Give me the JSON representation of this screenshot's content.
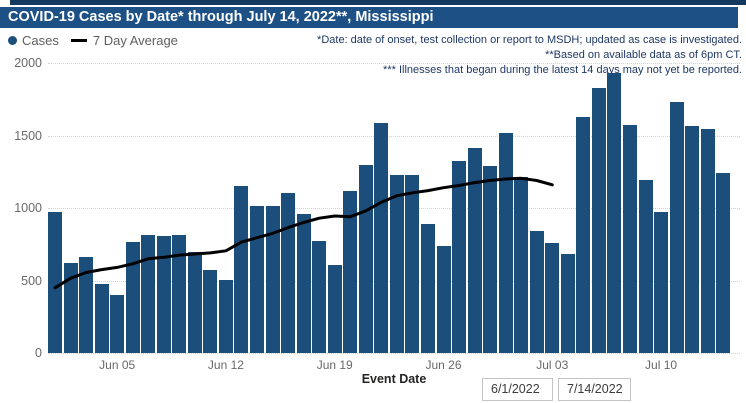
{
  "title_bar": {
    "text": "COVID-19 Cases by Date* through July 14, 2022**, Mississippi"
  },
  "legend": {
    "cases_label": "Cases",
    "avg_label": "7 Day Average"
  },
  "notes": [
    "*Date: date of onset, test collection or report to MSDH; updated as case is investigated.",
    "**Based on available data as of 6pm CT.",
    "*** Illnesses that began during the latest 14 days may not yet be reported."
  ],
  "date_filters": {
    "start": "6/1/2022",
    "end": "7/14/2022"
  },
  "colors": {
    "top_strip": "#14395E",
    "title_bg": "#1D5186",
    "title_text": "#FFFFFF",
    "bar": "#1C4E7C",
    "avg_line": "#000000",
    "note_text": "#1F3864",
    "axis_text": "#686868"
  },
  "chart_data": {
    "type": "bar+line",
    "title": "COVID-19 Cases by Date* through July 14, 2022**, Mississippi",
    "xlabel": "Event Date",
    "ylabel": "",
    "ylim": [
      0,
      2000
    ],
    "y_ticks": [
      0,
      500,
      1000,
      1500,
      2000
    ],
    "grid": "dotted-horizontal",
    "legend_position": "top-left",
    "x": [
      "Jun 1",
      "Jun 2",
      "Jun 3",
      "Jun 4",
      "Jun 5",
      "Jun 6",
      "Jun 7",
      "Jun 8",
      "Jun 9",
      "Jun 10",
      "Jun 11",
      "Jun 12",
      "Jun 13",
      "Jun 14",
      "Jun 15",
      "Jun 16",
      "Jun 17",
      "Jun 18",
      "Jun 19",
      "Jun 20",
      "Jun 21",
      "Jun 22",
      "Jun 23",
      "Jun 24",
      "Jun 25",
      "Jun 26",
      "Jun 27",
      "Jun 28",
      "Jun 29",
      "Jun 30",
      "Jul 1",
      "Jul 2",
      "Jul 3",
      "Jul 4",
      "Jul 5",
      "Jul 6",
      "Jul 7",
      "Jul 8",
      "Jul 9",
      "Jul 10",
      "Jul 11",
      "Jul 12",
      "Jul 13",
      "Jul 14"
    ],
    "x_ticks": [
      {
        "index": 4,
        "label": "Jun 05"
      },
      {
        "index": 11,
        "label": "Jun 12"
      },
      {
        "index": 18,
        "label": "Jun 19"
      },
      {
        "index": 25,
        "label": "Jun 26"
      },
      {
        "index": 32,
        "label": "Jul 03"
      },
      {
        "index": 39,
        "label": "Jul 10"
      }
    ],
    "series": [
      {
        "name": "Cases",
        "type": "bar",
        "values": [
          970,
          620,
          665,
          475,
          400,
          765,
          815,
          810,
          815,
          700,
          570,
          505,
          1155,
          1015,
          1015,
          1105,
          960,
          770,
          610,
          1115,
          1295,
          1590,
          1230,
          1230,
          890,
          735,
          1325,
          1415,
          1290,
          1515,
          1215,
          840,
          760,
          685,
          1630,
          1825,
          1930,
          1575,
          1195,
          975,
          1730,
          1565,
          1545,
          1240
        ]
      },
      {
        "name": "7 Day Average",
        "type": "line",
        "values": [
          450,
          515,
          555,
          575,
          590,
          615,
          650,
          660,
          675,
          683,
          690,
          705,
          765,
          795,
          825,
          865,
          900,
          930,
          945,
          940,
          980,
          1040,
          1085,
          1105,
          1120,
          1140,
          1155,
          1175,
          1190,
          1200,
          1205,
          1190,
          1160
        ]
      }
    ]
  }
}
